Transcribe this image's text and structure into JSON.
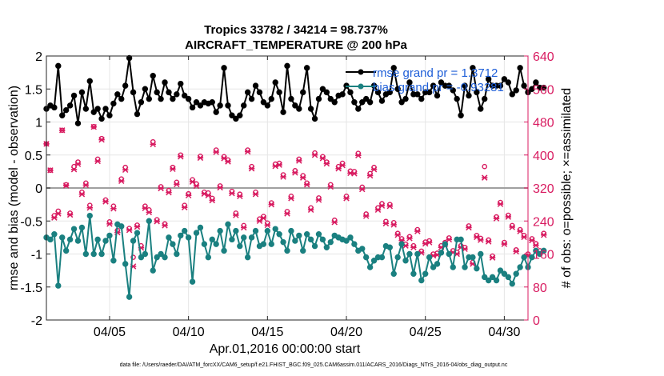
{
  "chart_data": {
    "type": "line",
    "title_line1": "Tropics 33782 / 34214 = 98.737%",
    "title_line2": "AIRCRAFT_TEMPERATURE @ 200 hPa",
    "xlabel": "Apr.01,2016 00:00:00 start",
    "ylabel_left": "rmse and bias (model - observation)",
    "ylabel_right": "# of obs: o=possible; ×=assimilated",
    "footnote": "data file: /Users/raeder/DAI/ATM_forcXX/CAM6_setup/f.e21.FHIST_BGC.f09_025.CAM6assim.011/ACARS_2016/Diags_NTrS_2016-04/obs_diag_output.nc",
    "xlim": [
      1,
      31.5
    ],
    "ylim_left": [
      -2,
      2
    ],
    "ylim_right": [
      0,
      640
    ],
    "x_ticks": [
      5,
      10,
      15,
      20,
      25,
      30
    ],
    "x_tick_labels": [
      "04/05",
      "04/10",
      "04/15",
      "04/20",
      "04/25",
      "04/30"
    ],
    "y_ticks_left": [
      -2,
      -1.5,
      -1,
      -0.5,
      0,
      0.5,
      1,
      1.5,
      2
    ],
    "y_tick_labels_left": [
      "-2",
      "-1.5",
      "-1",
      "-0.5",
      "0",
      "0.5",
      "1",
      "1.5",
      "2"
    ],
    "y_ticks_right": [
      0,
      80,
      160,
      240,
      320,
      400,
      480,
      560,
      640
    ],
    "y_tick_labels_right": [
      "0",
      "80",
      "160",
      "240",
      "320",
      "400",
      "480",
      "560",
      "640"
    ],
    "legend": {
      "position": "top-right",
      "rmse_label": "rmse grand pr = 1.3712",
      "bias_label": "bias grand pr = -0.93281"
    },
    "colors": {
      "rmse": "#000000",
      "bias": "#1a8080",
      "obs": "#d81b60",
      "legend_text": "#1f5fd8",
      "zero_line": "#a0a0a0",
      "grid": "#e6e6e6"
    },
    "time_start": 1.0,
    "time_step": 0.25,
    "series": [
      {
        "name": "rmse",
        "axis": "left",
        "values": [
          1.2,
          1.25,
          1.22,
          1.85,
          1.1,
          1.18,
          1.25,
          1.4,
          0.98,
          1.45,
          1.2,
          1.62,
          1.15,
          1.2,
          1.05,
          1.2,
          1.1,
          1.28,
          1.42,
          1.35,
          1.55,
          1.97,
          1.45,
          1.12,
          1.3,
          1.5,
          1.35,
          1.7,
          1.45,
          1.35,
          1.6,
          1.45,
          1.35,
          1.42,
          1.58,
          1.4,
          1.35,
          1.22,
          1.3,
          1.25,
          1.3,
          1.28,
          1.3,
          1.15,
          1.25,
          1.82,
          1.25,
          1.1,
          1.05,
          1.1,
          1.25,
          1.45,
          1.35,
          1.55,
          1.45,
          1.3,
          1.25,
          1.35,
          1.6,
          1.45,
          1.15,
          1.85,
          1.35,
          1.25,
          1.2,
          1.45,
          1.82,
          1.2,
          1.05,
          1.35,
          1.5,
          1.45,
          1.35,
          1.3,
          1.4,
          1.42,
          1.55,
          1.45,
          1.3,
          1.2,
          1.3,
          1.35,
          1.3,
          1.55,
          1.45,
          1.32,
          1.42,
          1.45,
          1.82,
          1.5,
          1.3,
          1.35,
          1.6,
          1.42,
          1.42,
          1.35,
          1.45,
          1.45,
          1.55,
          1.4,
          1.6,
          1.55,
          1.55,
          1.48,
          1.35,
          1.1,
          1.55,
          1.4,
          1.82,
          1.45,
          1.2,
          1.35,
          1.65,
          1.55,
          1.55,
          1.55,
          1.65,
          1.6,
          1.42,
          1.48,
          1.82,
          1.55,
          1.45,
          1.5,
          1.6,
          1.52,
          1.52
        ]
      },
      {
        "name": "bias",
        "axis": "left",
        "values": [
          -0.75,
          -0.78,
          -0.7,
          -1.48,
          -0.75,
          -0.95,
          -0.78,
          -0.62,
          -0.8,
          -0.6,
          -1.0,
          -0.42,
          -1.0,
          -0.78,
          -1.0,
          -0.8,
          -0.72,
          -1.1,
          -0.55,
          -0.58,
          -1.15,
          -1.65,
          -0.8,
          -0.68,
          -1.05,
          -1.0,
          -0.5,
          -1.25,
          -1.05,
          -1.0,
          -1.05,
          -0.75,
          -0.85,
          -1.0,
          -0.72,
          -0.65,
          -0.75,
          -1.42,
          -0.68,
          -0.6,
          -0.85,
          -1.05,
          -0.78,
          -0.85,
          -0.65,
          -0.95,
          -0.55,
          -0.78,
          -0.65,
          -0.88,
          -0.75,
          -1.05,
          -0.75,
          -0.65,
          -0.88,
          -0.85,
          -0.65,
          -0.85,
          -0.62,
          -0.7,
          -0.82,
          -0.95,
          -0.65,
          -0.8,
          -0.72,
          -0.95,
          -0.7,
          -0.78,
          -0.88,
          -0.7,
          -0.78,
          -0.9,
          -0.82,
          -0.72,
          -0.75,
          -0.78,
          -0.8,
          -0.75,
          -0.85,
          -0.95,
          -0.92,
          -1.05,
          -1.2,
          -1.1,
          -1.05,
          -1.05,
          -0.88,
          -0.9,
          -1.3,
          -1.05,
          -0.85,
          -1.1,
          -1.0,
          -1.3,
          -1.0,
          -1.4,
          -1.3,
          -1.05,
          -1.2,
          -1.15,
          -0.98,
          -0.85,
          -1.0,
          -1.2,
          -0.78,
          -0.78,
          -1.2,
          -1.05,
          -1.05,
          -1.22,
          -1.0,
          -1.35,
          -1.4,
          -1.35,
          -1.4,
          -1.25,
          -1.3,
          -1.35,
          -1.45,
          -1.3,
          -1.2,
          -1.05,
          -1.2,
          -1.05,
          -0.95,
          -1.0,
          -0.95
        ]
      },
      {
        "name": "obs_possible",
        "axis": "right",
        "marker": "o",
        "values": [
          427,
          363,
          253,
          264,
          460,
          328,
          259,
          372,
          383,
          310,
          332,
          278,
          469,
          390,
          440,
          291,
          238,
          276,
          217,
          342,
          370,
          222,
          152,
          230,
          180,
          276,
          267,
          432,
          243,
          323,
          233,
          314,
          370,
          334,
          400,
          278,
          306,
          340,
          330,
          397,
          310,
          308,
          295,
          412,
          325,
          396,
          388,
          312,
          259,
          305,
          229,
          412,
          372,
          310,
          245,
          251,
          235,
          284,
          378,
          380,
          352,
          263,
          300,
          362,
          390,
          350,
          332,
          272,
          405,
          296,
          396,
          383,
          328,
          242,
          372,
          380,
          300,
          361,
          360,
          404,
          322,
          257,
          355,
          370,
          272,
          282,
          239,
          280,
          236,
          210,
          197,
          184,
          202,
          180,
          219,
          167,
          189,
          192,
          160,
          162,
          180,
          188,
          199,
          168,
          164,
          180,
          176,
          228,
          140,
          205,
          198,
          372,
          194,
          155,
          250,
          285,
          188,
          254,
          229,
          170,
          219,
          205,
          160,
          197,
          185,
          168,
          210
        ]
      },
      {
        "name": "obs_assimilated",
        "axis": "right",
        "marker": "x",
        "values": [
          427,
          363,
          248,
          258,
          460,
          326,
          255,
          365,
          378,
          305,
          327,
          272,
          468,
          385,
          437,
          287,
          233,
          270,
          212,
          337,
          364,
          218,
          130,
          226,
          175,
          271,
          261,
          426,
          239,
          319,
          229,
          309,
          366,
          329,
          396,
          273,
          302,
          335,
          325,
          393,
          306,
          302,
          290,
          407,
          321,
          392,
          384,
          307,
          254,
          300,
          224,
          408,
          367,
          305,
          240,
          247,
          230,
          280,
          373,
          376,
          347,
          258,
          295,
          357,
          386,
          345,
          328,
          267,
          400,
          291,
          392,
          379,
          323,
          237,
          367,
          375,
          295,
          356,
          355,
          399,
          317,
          252,
          350,
          365,
          267,
          277,
          234,
          276,
          231,
          206,
          193,
          180,
          198,
          176,
          215,
          163,
          185,
          188,
          156,
          158,
          176,
          184,
          195,
          164,
          160,
          176,
          172,
          224,
          136,
          201,
          194,
          345,
          190,
          151,
          246,
          281,
          184,
          250,
          225,
          166,
          215,
          201,
          156,
          193,
          181,
          164,
          206
        ]
      }
    ]
  }
}
